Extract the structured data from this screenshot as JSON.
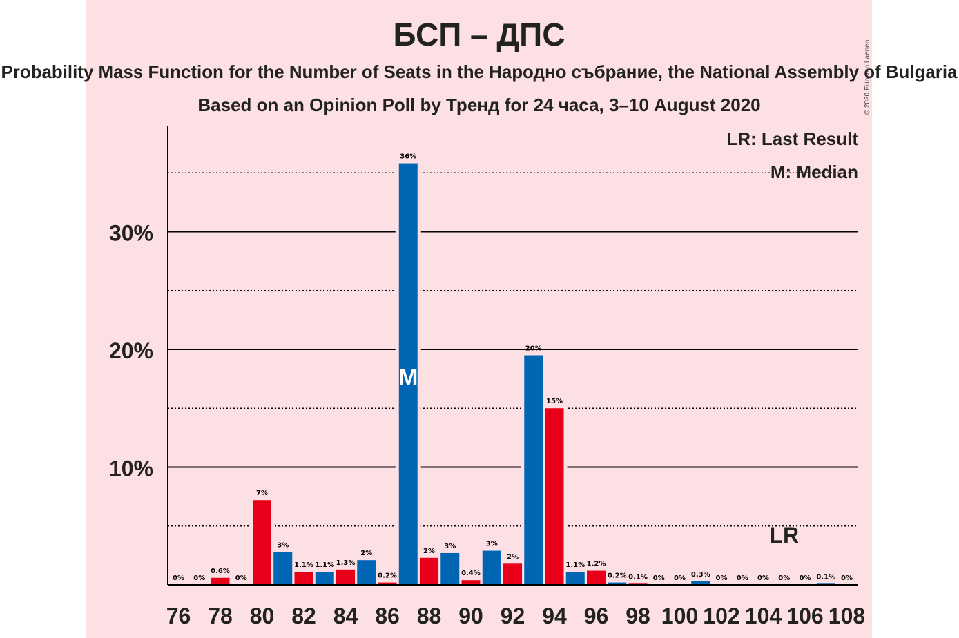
{
  "chart_data": {
    "type": "bar",
    "title": "БСП – ДПС",
    "subtitle": "Probability Mass Function for the Number of Seats in the Народно събрание, the National Assembly of Bulgaria",
    "subtitle2": "Based on an Opinion Poll by Тренд for 24 часа, 3–10 August 2020",
    "copyright": "© 2020 Filip van Laenen",
    "legend": {
      "lr": "LR: Last Result",
      "median": "M: Median"
    },
    "median_marker": "M",
    "last_result_marker": "LR",
    "median_seat": 87,
    "last_result_seat": 105,
    "x": [
      76,
      77,
      78,
      79,
      80,
      81,
      82,
      83,
      84,
      85,
      86,
      87,
      88,
      89,
      90,
      91,
      92,
      93,
      94,
      95,
      96,
      97,
      98,
      99,
      100,
      101,
      102,
      103,
      104,
      105,
      106,
      107,
      108
    ],
    "values": [
      0,
      0,
      0.6,
      0,
      7.2,
      2.8,
      1.1,
      1.1,
      1.3,
      2.1,
      0.2,
      35.8,
      2.3,
      2.7,
      0.4,
      2.9,
      1.8,
      19.5,
      15.0,
      1.1,
      1.2,
      0.2,
      0.1,
      0,
      0,
      0.3,
      0,
      0,
      0,
      0,
      0,
      0.1,
      0
    ],
    "labels": [
      "0%",
      "0%",
      "0.6%",
      "0%",
      "7%",
      "3%",
      "1.1%",
      "1.1%",
      "1.3%",
      "2%",
      "0.2%",
      "36%",
      "2%",
      "3%",
      "0.4%",
      "3%",
      "2%",
      "20%",
      "15%",
      "1.1%",
      "1.2%",
      "0.2%",
      "0.1%",
      "0%",
      "0%",
      "0.3%",
      "0%",
      "0%",
      "0%",
      "0%",
      "0%",
      "0.1%",
      "0%"
    ],
    "bar_colors": [
      "#e8001b",
      "#0065b3"
    ],
    "x_tick_labels": [
      "76",
      "78",
      "80",
      "82",
      "84",
      "86",
      "88",
      "90",
      "92",
      "94",
      "96",
      "98",
      "100",
      "102",
      "104",
      "106",
      "108"
    ],
    "y_tick_labels": [
      "10%",
      "20%",
      "30%"
    ],
    "ylim": [
      0,
      39
    ],
    "y_major_ticks": [
      10,
      20,
      30
    ],
    "y_minor_ticks": [
      5,
      15,
      25,
      35
    ],
    "grid": true
  }
}
